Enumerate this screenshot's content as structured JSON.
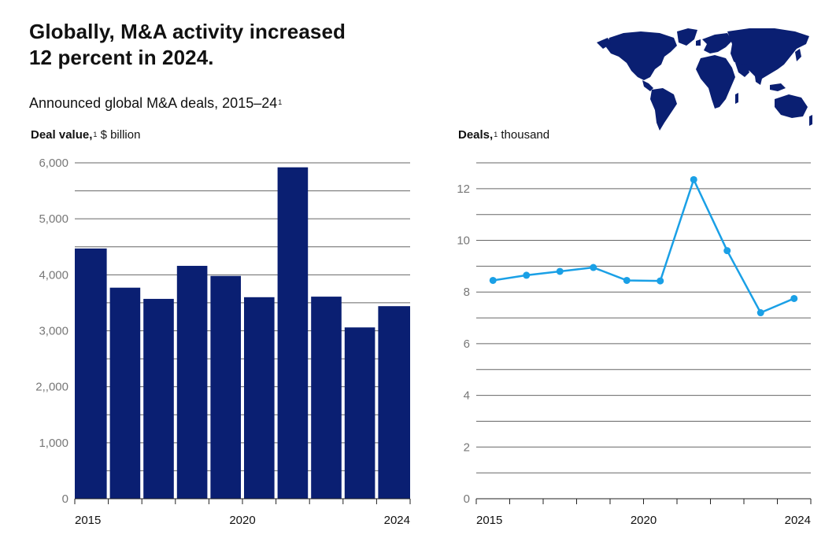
{
  "header": {
    "title_line1": "Globally, M&A activity increased",
    "title_line2": "12 percent in 2024.",
    "subtitle": "Announced global M&A deals, 2015–24",
    "subtitle_footnote": "1"
  },
  "colors": {
    "bar": "#0a1f72",
    "line": "#1aa0e6",
    "map": "#0a1f72",
    "grid": "#666666"
  },
  "chart_data": [
    {
      "type": "bar",
      "label_bold": "Deal value,",
      "label_footnote": "1",
      "label_rest": " $ billion",
      "xlabel": "",
      "ylabel": "Deal value, $ billion",
      "categories": [
        "2015",
        "2016",
        "2017",
        "2018",
        "2019",
        "2020",
        "2021",
        "2022",
        "2023",
        "2024"
      ],
      "values": [
        4470,
        3770,
        3570,
        4160,
        3980,
        3600,
        5920,
        3610,
        3060,
        3440
      ],
      "ylim": [
        0,
        6000
      ],
      "yticks": [
        0,
        1000,
        2000,
        3000,
        4000,
        5000,
        6000
      ],
      "ytick_labels": [
        "0",
        "1,000",
        "2,,000",
        "3,000",
        "4,000",
        "5,000",
        "6,000"
      ],
      "gridlines": [
        500,
        1000,
        1500,
        2000,
        2500,
        3000,
        3500,
        4000,
        4500,
        5000,
        5500,
        6000
      ],
      "xtick_labels": [
        "2015",
        "2020",
        "2024"
      ]
    },
    {
      "type": "line",
      "label_bold": "Deals,",
      "label_footnote": "1",
      "label_rest": " thousand",
      "xlabel": "",
      "ylabel": "Deals, thousand",
      "x": [
        "2015",
        "2016",
        "2017",
        "2018",
        "2019",
        "2020",
        "2021",
        "2022",
        "2023",
        "2024"
      ],
      "values": [
        8.45,
        8.65,
        8.8,
        8.95,
        8.45,
        8.43,
        12.35,
        9.6,
        7.2,
        7.75
      ],
      "ylim": [
        0,
        13
      ],
      "yticks": [
        0,
        2,
        4,
        6,
        8,
        10,
        12
      ],
      "ytick_labels": [
        "0",
        "2",
        "4",
        "6",
        "8",
        "10",
        "12"
      ],
      "gridlines": [
        1,
        2,
        3,
        4,
        5,
        6,
        7,
        8,
        9,
        10,
        11,
        12,
        13
      ],
      "xtick_labels": [
        "2015",
        "2020",
        "2024"
      ]
    }
  ]
}
